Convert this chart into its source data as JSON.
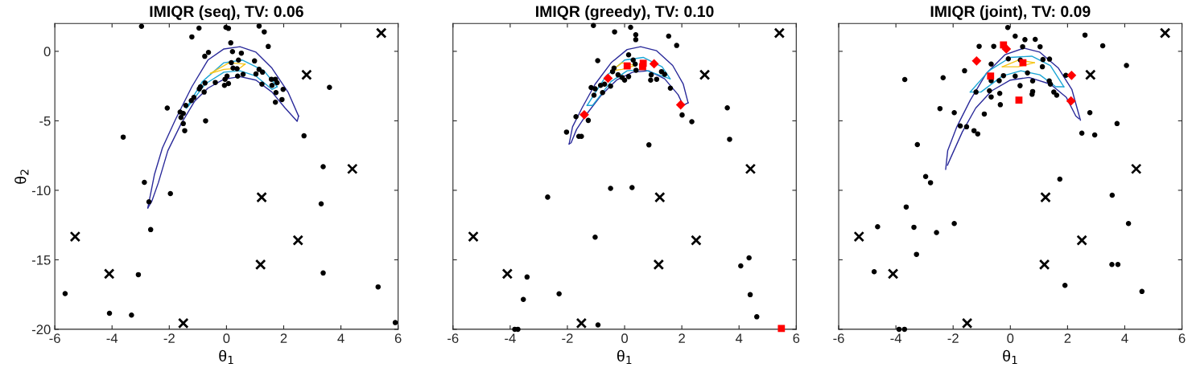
{
  "chart_data": [
    {
      "type": "scatter",
      "title": "IMIQR (seq), TV: 0.06",
      "xlabel": "θ$_{1}$",
      "ylabel": "θ$_{2}$",
      "xlim": [
        -6,
        6
      ],
      "ylim": [
        -20,
        2
      ],
      "xticks": [
        -6,
        -4,
        -2,
        0,
        2,
        4,
        6
      ],
      "yticks": [
        -20,
        -15,
        -10,
        -5,
        0
      ],
      "grid": false,
      "series": [
        {
          "type": "line",
          "marker": "none",
          "color": "#2a2a9a",
          "x": [
            -2.75,
            -2.52,
            -2.24,
            -1.77,
            -1.21,
            -0.65,
            -0.09,
            0.47,
            1.03,
            1.59,
            2.15,
            2.52
          ],
          "values": [
            -11.27,
            -8.88,
            -6.96,
            -4.85,
            -2.55,
            -0.63,
            0.17,
            0.33,
            -0.06,
            -1.21,
            -2.93,
            -4.66
          ]
        },
        {
          "type": "line",
          "marker": "none",
          "color": "#2a2a9a",
          "x": [
            -2.75,
            -2.61,
            -2.38,
            -2.05,
            -1.59,
            -1.12,
            -0.65,
            -0.09,
            0.47,
            1.03,
            1.59,
            2.05,
            2.47,
            2.52
          ],
          "values": [
            -11.27,
            -10.79,
            -9.45,
            -7.15,
            -5.23,
            -3.61,
            -2.65,
            -2.01,
            -1.82,
            -2.07,
            -2.93,
            -4.08,
            -5.04,
            -4.66
          ]
        },
        {
          "type": "line",
          "marker": "none",
          "color": "#1ca6d6",
          "x": [
            -1.4,
            -0.84,
            -0.09,
            0.56,
            1.31,
            1.77
          ],
          "values": [
            -4.08,
            -2.17,
            -0.82,
            -0.63,
            -1.4,
            -2.55
          ]
        },
        {
          "type": "line",
          "marker": "none",
          "color": "#1ca6d6",
          "x": [
            -1.4,
            -1.31,
            -0.75,
            -0.09,
            0.47,
            1.03,
            1.59,
            1.77
          ],
          "values": [
            -4.08,
            -3.89,
            -2.36,
            -1.5,
            -1.4,
            -1.78,
            -2.74,
            -2.55
          ]
        },
        {
          "type": "line",
          "marker": "none",
          "color": "#f5c518",
          "x": [
            -0.56,
            0.09,
            0.65
          ],
          "values": [
            -1.59,
            -0.82,
            -0.92
          ]
        },
        {
          "type": "line",
          "marker": "none",
          "color": "#f5c518",
          "x": [
            -0.56,
            -0.09,
            0.47,
            0.65
          ],
          "values": [
            -1.59,
            -1.3,
            -1.21,
            -0.92
          ]
        },
        {
          "marker": "circle",
          "color": "#000000",
          "x": [
            -2.97,
            -0.96,
            -1.21,
            -0.02,
            0.07,
            1.14,
            1.32,
            1.46,
            0.15,
            -0.76,
            -0.63,
            0.21,
            0.52,
            0.42,
            0.98,
            0.17,
            0.23,
            0.37,
            1.14,
            1.26,
            1.03,
            0.58,
            0.39,
            0.02,
            -0.05,
            0.07,
            -0.07,
            -0.39,
            -0.75,
            -0.91,
            -0.78,
            -0.95,
            1.57,
            1.71,
            1.59,
            1.77,
            1.24,
            1.98,
            1.73,
            1.94,
            1.71,
            -1.14,
            -1.23,
            -1.42,
            -2.07,
            -1.62,
            -1.51,
            -1.59,
            -1.51,
            -1.46,
            -0.73,
            3.6,
            2.71,
            -3.61,
            -2.87,
            3.38,
            -1.96,
            -2.71,
            -2.65,
            3.31,
            -3.08,
            3.38,
            5.3,
            -5.64,
            -4.09,
            -3.32,
            5.9
          ],
          "values": [
            1.8,
            1.67,
            1.04,
            1.73,
            1.65,
            1.82,
            1.4,
            0.35,
            0.61,
            -0.36,
            -0.08,
            -0.02,
            -0.13,
            -0.63,
            -0.69,
            -0.82,
            -1.21,
            -1.25,
            -1.3,
            -1.5,
            -1.63,
            -1.65,
            -1.78,
            -1.78,
            -2.01,
            -2.32,
            -2.45,
            -2.24,
            -2.28,
            -2.55,
            -2.93,
            -2.7,
            -2.01,
            -2.01,
            -2.45,
            -2.26,
            -2.36,
            -2.74,
            -2.97,
            -3.47,
            -3.66,
            -3.32,
            -3.55,
            -3.89,
            -4.08,
            -4.37,
            -4.47,
            -4.76,
            -5.2,
            -5.71,
            -5.0,
            -2.59,
            -6.08,
            -6.17,
            -9.43,
            -8.3,
            -10.24,
            -10.83,
            -12.83,
            -10.97,
            -16.07,
            -15.95,
            -16.95,
            -17.43,
            -18.85,
            -18.98,
            -19.52
          ]
        },
        {
          "marker": "cross",
          "color": "#000000",
          "x": [
            5.41,
            2.8,
            4.4,
            1.23,
            -5.29,
            2.5,
            1.19,
            -4.1,
            -1.51
          ],
          "values": [
            1.32,
            -1.69,
            -8.46,
            -10.51,
            -13.33,
            -13.6,
            -15.34,
            -16.01,
            -19.56
          ]
        }
      ]
    },
    {
      "type": "scatter",
      "title": "IMIQR (greedy), TV: 0.10",
      "xlabel": "θ$_{1}$",
      "xlim": [
        -6,
        6
      ],
      "ylim": [
        -20,
        2
      ],
      "xticks": [
        -6,
        -4,
        -2,
        0,
        2,
        4,
        6
      ],
      "yticks": [
        -20,
        -15,
        -10,
        -5,
        0
      ],
      "tick_labels": "x",
      "grid": false,
      "series": [
        {
          "type": "line",
          "marker": "none",
          "color": "#2a2a9a",
          "x": [
            -1.94,
            -1.82,
            -1.49,
            -1.03,
            -0.47,
            0.09,
            0.56,
            1.12,
            1.68,
            2.05,
            2.22
          ],
          "values": [
            -6.67,
            -5.43,
            -4.08,
            -2.36,
            -0.82,
            0.13,
            0.33,
            0.04,
            -1.02,
            -2.36,
            -3.7
          ]
        },
        {
          "type": "line",
          "marker": "none",
          "color": "#2a2a9a",
          "x": [
            -1.94,
            -1.87,
            -1.68,
            -1.31,
            -0.84,
            -0.28,
            0.28,
            0.84,
            1.4,
            1.87,
            2.05,
            2.22
          ],
          "values": [
            -6.67,
            -6.58,
            -5.62,
            -4.47,
            -3.22,
            -2.07,
            -1.5,
            -1.4,
            -1.98,
            -3.12,
            -3.89,
            -3.7
          ]
        },
        {
          "type": "line",
          "marker": "none",
          "color": "#1ca6d6",
          "x": [
            -1.31,
            -0.65,
            0.0,
            0.65,
            1.31,
            1.59
          ],
          "values": [
            -3.89,
            -1.78,
            -0.63,
            -0.44,
            -1.11,
            -1.98
          ]
        },
        {
          "type": "line",
          "marker": "none",
          "color": "#1ca6d6",
          "x": [
            -1.31,
            -1.12,
            -0.47,
            0.09,
            0.65,
            1.31,
            1.59
          ],
          "values": [
            -3.89,
            -3.89,
            -2.17,
            -1.4,
            -1.3,
            -1.78,
            -1.98
          ]
        },
        {
          "type": "line",
          "marker": "none",
          "color": "#f5c518",
          "x": [
            -0.47,
            -0.09,
            0.37
          ],
          "values": [
            -1.4,
            -0.82,
            -1.02
          ]
        },
        {
          "type": "line",
          "marker": "none",
          "color": "#f5c518",
          "x": [
            -0.47,
            -0.09,
            0.37
          ],
          "values": [
            -1.4,
            -1.3,
            -1.02
          ]
        },
        {
          "marker": "circle",
          "color": "#000000",
          "x": [
            -1.09,
            0.21,
            -0.35,
            0.39,
            0.39,
            1.54,
            1.82,
            -0.94,
            0.14,
            0.3,
            0.37,
            0.4,
            -0.37,
            -0.42,
            -0.23,
            -0.09,
            0.0,
            0.14,
            1.29,
            1.4,
            0.93,
            0.91,
            1.12,
            1.6,
            -0.7,
            -0.49,
            -0.84,
            -1.17,
            -1.03,
            -1.07,
            -0.77,
            -1.7,
            -1.27,
            -2.03,
            -1.6,
            -1.51,
            2.01,
            2.35,
            3.59,
            3.67,
            0.85,
            -2.69,
            -0.49,
            0.26,
            -1.03,
            -3.41,
            4.35,
            4.06,
            -3.54,
            -2.29,
            4.39,
            4.62,
            -0.93,
            -3.84,
            -3.73
          ],
          "values": [
            1.86,
            1.73,
            1.4,
            1.19,
            0.84,
            1.09,
            0.42,
            -0.67,
            -0.25,
            -0.63,
            -0.92,
            -1.36,
            -1.21,
            -1.46,
            -1.69,
            -1.88,
            -2.07,
            -1.82,
            -1.46,
            -1.65,
            -1.69,
            -2.07,
            -2.01,
            -2.65,
            -2.36,
            -2.51,
            -2.45,
            -2.61,
            -2.7,
            -3.16,
            -2.97,
            -4.7,
            -4.97,
            -5.81,
            -6.12,
            -6.12,
            -4.58,
            -5.06,
            -4.07,
            -6.33,
            -6.73,
            -10.49,
            -9.86,
            -9.8,
            -13.37,
            -16.24,
            -14.86,
            -15.44,
            -17.85,
            -17.45,
            -17.51,
            -19.1,
            -19.69,
            -20.0,
            -20.0
          ]
        },
        {
          "marker": "cross",
          "color": "#000000",
          "x": [
            5.41,
            2.8,
            4.4,
            1.23,
            -5.29,
            2.5,
            1.19,
            -4.1,
            -1.51
          ],
          "values": [
            1.32,
            -1.69,
            -8.46,
            -10.51,
            -13.33,
            -13.6,
            -15.34,
            -16.01,
            -19.56
          ]
        },
        {
          "marker": "square",
          "color": "#ff0000",
          "x": [
            0.09,
            0.65,
            0.63,
            5.48
          ],
          "values": [
            -1.05,
            -0.86,
            -1.11,
            -19.94
          ]
        },
        {
          "marker": "diamond",
          "color": "#ff0000",
          "x": [
            1.03,
            -0.58,
            1.96,
            -1.41
          ],
          "values": [
            -0.9,
            -1.94,
            -3.85,
            -4.56
          ]
        }
      ]
    },
    {
      "type": "scatter",
      "title": "IMIQR (joint), TV: 0.09",
      "xlabel": "θ$_{1}$",
      "xlim": [
        -6,
        6
      ],
      "ylim": [
        -20,
        2
      ],
      "xticks": [
        -6,
        -4,
        -2,
        0,
        2,
        4,
        6
      ],
      "yticks": [
        -20,
        -15,
        -10,
        -5,
        0
      ],
      "tick_labels": "x",
      "grid": false,
      "series": [
        {
          "type": "line",
          "marker": "none",
          "color": "#2a2a9a",
          "x": [
            -2.26,
            -2.19,
            -1.87,
            -1.4,
            -0.84,
            -0.19,
            0.47,
            1.03,
            1.68,
            2.15,
            2.45
          ],
          "values": [
            -8.49,
            -7.15,
            -5.43,
            -3.51,
            -1.59,
            -0.25,
            0.23,
            -0.06,
            -1.21,
            -2.74,
            -4.95
          ]
        },
        {
          "type": "line",
          "marker": "none",
          "color": "#2a2a9a",
          "x": [
            -2.2,
            -2.1,
            -1.68,
            -1.21,
            -0.65,
            0.0,
            0.65,
            1.4,
            1.96,
            2.29,
            2.4
          ],
          "values": [
            -8.2,
            -7.73,
            -5.81,
            -4.08,
            -2.84,
            -2.07,
            -1.88,
            -2.36,
            -3.32,
            -4.66,
            -4.85
          ]
        },
        {
          "type": "line",
          "marker": "none",
          "color": "#1ca6d6",
          "x": [
            -1.4,
            -0.75,
            0.0,
            0.75,
            1.4,
            1.87
          ],
          "values": [
            -2.93,
            -1.4,
            -0.44,
            -0.35,
            -1.02,
            -2.55
          ]
        },
        {
          "type": "line",
          "marker": "none",
          "color": "#1ca6d6",
          "x": [
            -1.4,
            -1.03,
            -0.28,
            0.37,
            1.03,
            1.59,
            1.87
          ],
          "values": [
            -2.93,
            -2.93,
            -1.78,
            -1.4,
            -1.69,
            -2.55,
            -2.55
          ]
        },
        {
          "type": "line",
          "marker": "none",
          "color": "#f5c518",
          "x": [
            -0.28,
            0.28,
            0.84
          ],
          "values": [
            -1.11,
            -0.63,
            -0.82
          ]
        },
        {
          "type": "line",
          "marker": "none",
          "color": "#f5c518",
          "x": [
            -0.28,
            0.28,
            0.84
          ],
          "values": [
            -1.11,
            -1.11,
            -0.82
          ]
        },
        {
          "marker": "circle",
          "color": "#000000",
          "x": [
            -0.09,
            0.17,
            0.51,
            0.87,
            2.61,
            3.23,
            4.06,
            -1.09,
            -0.58,
            0.43,
            1.04,
            -0.07,
            0.35,
            1.14,
            1.37,
            -0.67,
            1.12,
            0.6,
            0.17,
            -0.24,
            -0.39,
            -0.67,
            0.78,
            1.36,
            1.94,
            0.34,
            1.4,
            -0.73,
            -0.37,
            -1.2,
            0.78,
            0.76,
            1.52,
            1.62,
            -0.67,
            -0.35,
            -0.91,
            -1.6,
            -2.35,
            -3.69,
            -2.46,
            -1.96,
            -1.75,
            -1.53,
            -1.27,
            -1.14,
            2.78,
            3.73,
            2.5,
            2.95,
            -3.25,
            -2.96,
            -2.79,
            1.73,
            3.56,
            -3.64,
            -1.96,
            -3.37,
            4.13,
            -4.64,
            -2.58,
            -3.28,
            -4.76,
            3.55,
            3.76,
            1.91,
            4.6,
            -3.89,
            -3.7
          ],
          "values": [
            1.71,
            1.09,
            0.84,
            0.86,
            1.17,
            0.4,
            -1.02,
            0.36,
            0.36,
            0.33,
            0.33,
            -0.54,
            -0.63,
            -0.59,
            -0.56,
            -0.92,
            -1.11,
            -1.55,
            -1.78,
            -1.75,
            -2.11,
            -2.11,
            -2.13,
            -2.13,
            -1.73,
            -2.47,
            -2.36,
            -2.84,
            -3.03,
            -2.93,
            -2.89,
            -3.09,
            -2.93,
            -3.16,
            -3.28,
            -3.84,
            -4.51,
            -1.4,
            -1.9,
            -2.03,
            -4.12,
            -4.41,
            -5.37,
            -5.43,
            -5.71,
            -5.94,
            -4.41,
            -5.2,
            -5.89,
            -6.02,
            -6.71,
            -9.01,
            -9.45,
            -9.2,
            -10.35,
            -11.2,
            -12.39,
            -12.66,
            -12.39,
            -12.62,
            -13.04,
            -14.61,
            -15.86,
            -15.34,
            -15.34,
            -16.84,
            -17.28,
            -20.0,
            -20.0
          ]
        },
        {
          "marker": "cross",
          "color": "#000000",
          "x": [
            5.41,
            2.8,
            4.4,
            1.23,
            -5.29,
            2.5,
            1.19,
            -4.1,
            -1.51
          ],
          "values": [
            1.32,
            -1.69,
            -8.46,
            -10.51,
            -13.33,
            -13.6,
            -15.34,
            -16.01,
            -19.56
          ]
        },
        {
          "marker": "square",
          "color": "#ff0000",
          "x": [
            -0.24,
            0.44,
            -0.69,
            0.3
          ],
          "values": [
            0.46,
            -0.82,
            -1.78,
            -3.51
          ]
        },
        {
          "marker": "diamond",
          "color": "#ff0000",
          "x": [
            -0.14,
            -1.18,
            2.14,
            2.12
          ],
          "values": [
            0.17,
            -0.69,
            -1.73,
            -3.57
          ]
        }
      ]
    }
  ]
}
